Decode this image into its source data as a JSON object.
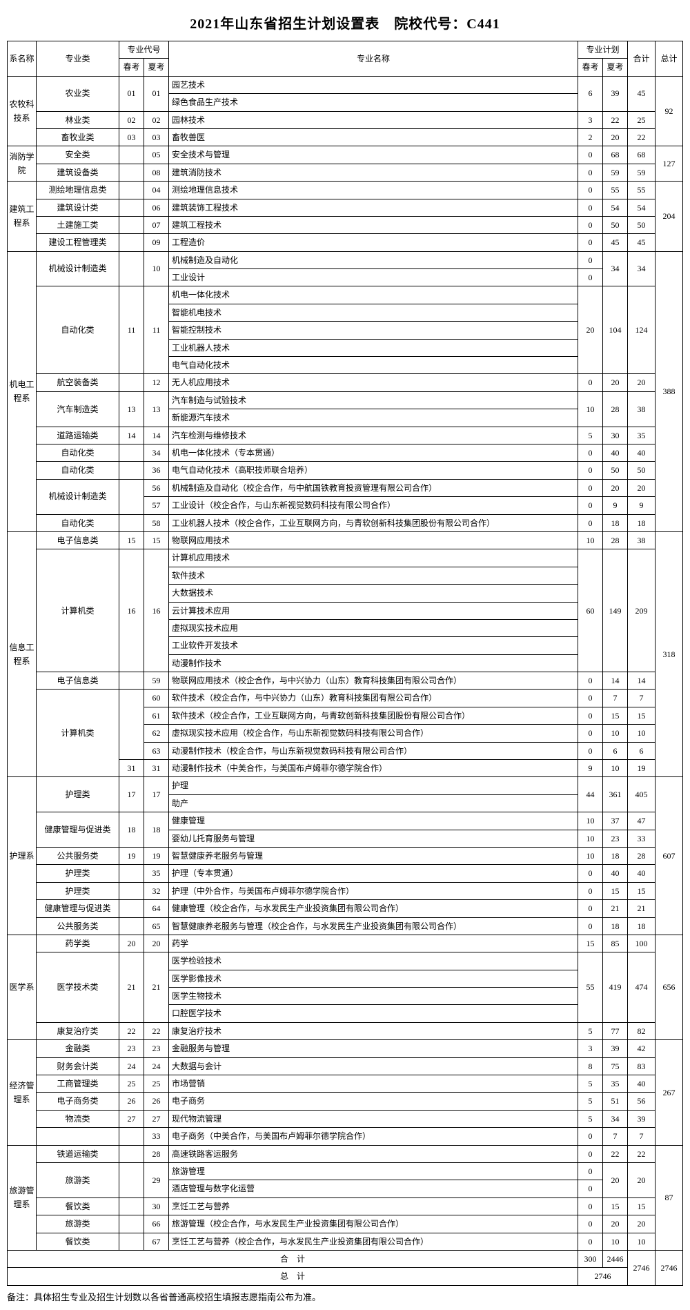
{
  "title": "2021年山东省招生计划设置表　院校代号：C441",
  "headers": {
    "dept": "系名称",
    "category": "专业类",
    "codeGroup": "专业代号",
    "codeSpring": "春考",
    "codeSummer": "夏考",
    "majorName": "专业名称",
    "planGroup": "专业计划",
    "planSpring": "春考",
    "planSummer": "夏考",
    "sum": "合计",
    "total": "总计"
  },
  "footer": {
    "sumLabel": "合　计",
    "totalLabel": "总　计",
    "sumSpring": "300",
    "sumSummer": "2446",
    "grandSum": "2746",
    "grandTotal": "2746",
    "totalMerged": "2746"
  },
  "note": "备注：具体招生专业及招生计划数以各省普通高校招生填报志愿指南公布为准。",
  "cells": {
    "d1": "农牧科技系",
    "d2": "消防学院",
    "d3": "建筑工程系",
    "d4": "机电工程系",
    "d5": "信息工程系",
    "d6": "护理系",
    "d7": "医学系",
    "d8": "经济管理系",
    "d9": "旅游管理系",
    "c1": "农业类",
    "c2": "林业类",
    "c3": "畜牧业类",
    "c4": "安全类",
    "c5": "建筑设备类",
    "c6": "测绘地理信息类",
    "c7": "建筑设计类",
    "c8": "土建施工类",
    "c9": "建设工程管理类",
    "c10": "机械设计制造类",
    "c11": "自动化类",
    "c12": "航空装备类",
    "c13": "汽车制造类",
    "c14": "道路运输类",
    "c15": "自动化类",
    "c16": "自动化类",
    "c17": "机械设计制造类",
    "c18": "自动化类",
    "c19": "电子信息类",
    "c20": "计算机类",
    "c21": "电子信息类",
    "c22": "计算机类",
    "c23": "护理类",
    "c24": "健康管理与促进类",
    "c25": "公共服务类",
    "c26": "护理类",
    "c27": "护理类",
    "c28": "健康管理与促进类",
    "c29": "公共服务类",
    "c30": "药学类",
    "c31": "医学技术类",
    "c32": "康复治疗类",
    "c33": "金融类",
    "c34": "财务会计类",
    "c35": "工商管理类",
    "c36": "电子商务类",
    "c37": "物流类",
    "c38": "铁道运输类",
    "c39": "旅游类",
    "c40": "餐饮类",
    "c41": "旅游类",
    "c42": "餐饮类",
    "m1": "园艺技术",
    "m2": "绿色食品生产技术",
    "m3": "园林技术",
    "m4": "畜牧兽医",
    "m5": "安全技术与管理",
    "m6": "建筑消防技术",
    "m7": "测绘地理信息技术",
    "m8": "建筑装饰工程技术",
    "m9": "建筑工程技术",
    "m10": "工程造价",
    "m11": "机械制造及自动化",
    "m12": "工业设计",
    "m13": "机电一体化技术",
    "m14": "智能机电技术",
    "m15": "智能控制技术",
    "m16": "工业机器人技术",
    "m17": "电气自动化技术",
    "m18": "无人机应用技术",
    "m19": "汽车制造与试验技术",
    "m20": "新能源汽车技术",
    "m21": "汽车检测与维修技术",
    "m22": "机电一体化技术（专本贯通）",
    "m23": "电气自动化技术（高职技师联合培养）",
    "m24": "机械制造及自动化（校企合作，与中航国铁教育投资管理有限公司合作）",
    "m25": "工业设计（校企合作，与山东新视觉数码科技有限公司合作）",
    "m26": "工业机器人技术（校企合作，工业互联网方向，与青软创新科技集团股份有限公司合作）",
    "m27": "物联网应用技术",
    "m28": "计算机应用技术",
    "m29": "软件技术",
    "m30": "大数据技术",
    "m31": "云计算技术应用",
    "m32": "虚拟现实技术应用",
    "m33": "工业软件开发技术",
    "m34": "动漫制作技术",
    "m35": "物联网应用技术（校企合作，与中兴协力（山东）教育科技集团有限公司合作）",
    "m36": "软件技术（校企合作，与中兴协力（山东）教育科技集团有限公司合作）",
    "m37": "软件技术（校企合作，工业互联网方向，与青软创新科技集团股份有限公司合作）",
    "m38": "虚拟现实技术应用（校企合作，与山东新视觉数码科技有限公司合作）",
    "m39": "动漫制作技术（校企合作，与山东新视觉数码科技有限公司合作）",
    "m40": "动漫制作技术（中美合作，与美国布卢姆菲尔德学院合作）",
    "m41": "护理",
    "m42": "助产",
    "m43": "健康管理",
    "m44": "婴幼儿托育服务与管理",
    "m45": "智慧健康养老服务与管理",
    "m46": "护理（专本贯通）",
    "m47": "护理（中外合作，与美国布卢姆菲尔德学院合作）",
    "m48": "健康管理（校企合作，与水发民生产业投资集团有限公司合作）",
    "m49": "智慧健康养老服务与管理（校企合作，与水发民生产业投资集团有限公司合作）",
    "m50": "药学",
    "m51": "医学检验技术",
    "m52": "医学影像技术",
    "m53": "医学生物技术",
    "m54": "口腔医学技术",
    "m55": "康复治疗技术",
    "m56": "金融服务与管理",
    "m57": "大数据与会计",
    "m58": "市场营销",
    "m59": "电子商务",
    "m60": "现代物流管理",
    "m61": "电子商务（中美合作，与美国布卢姆菲尔德学院合作）",
    "m62": "高速铁路客运服务",
    "m63": "旅游管理",
    "m64": "酒店管理与数字化运营",
    "m65": "烹饪工艺与营养",
    "m66": "旅游管理（校企合作，与水发民生产业投资集团有限公司合作）",
    "m67": "烹饪工艺与营养（校企合作，与水发民生产业投资集团有限公司合作）",
    "sc1a": "01",
    "sc1b": "01",
    "sc2a": "02",
    "sc2b": "02",
    "sc3a": "03",
    "sc3b": "03",
    "sc4b": "05",
    "sc5b": "08",
    "sc6b": "04",
    "sc7b": "06",
    "sc8b": "07",
    "sc9b": "09",
    "sc10b": "10",
    "sc11a": "11",
    "sc11b": "11",
    "sc12b": "12",
    "sc13a": "13",
    "sc13b": "13",
    "sc14a": "14",
    "sc14b": "14",
    "sc15b": "34",
    "sc16b": "36",
    "sc17b": "56",
    "sc18b": "57",
    "sc19b": "58",
    "sc20a": "15",
    "sc20b": "15",
    "sc21a": "16",
    "sc21b": "16",
    "sc22b": "59",
    "sc23b": "60",
    "sc24b": "61",
    "sc25b": "62",
    "sc26b": "63",
    "sc27a": "31",
    "sc27b": "31",
    "sc28a": "17",
    "sc28b": "17",
    "sc29a": "18",
    "sc29b": "18",
    "sc30a": "19",
    "sc30b": "19",
    "sc31b": "35",
    "sc32b": "32",
    "sc33b": "64",
    "sc34b": "65",
    "sc35a": "20",
    "sc35b": "20",
    "sc36a": "21",
    "sc36b": "21",
    "sc37a": "22",
    "sc37b": "22",
    "sc38a": "23",
    "sc38b": "23",
    "sc39a": "24",
    "sc39b": "24",
    "sc40a": "25",
    "sc40b": "25",
    "sc41a": "26",
    "sc41b": "26",
    "sc42a": "27",
    "sc42b": "27",
    "sc43b": "33",
    "sc44b": "28",
    "sc45b": "29",
    "sc46b": "30",
    "sc47b": "66",
    "sc48b": "67",
    "p1a": "6",
    "p1b": "39",
    "s1": "45",
    "p2a": "3",
    "p2b": "22",
    "s2": "25",
    "p3a": "2",
    "p3b": "20",
    "s3": "22",
    "t1": "92",
    "p4a": "0",
    "p4b": "68",
    "s4": "68",
    "p5a": "0",
    "p5b": "59",
    "s5": "59",
    "t2": "127",
    "p6a": "0",
    "p6b": "55",
    "s6": "55",
    "p7a": "0",
    "p7b": "54",
    "s7": "54",
    "p8a": "0",
    "p8b": "50",
    "s8": "50",
    "p9a": "0",
    "p9b": "45",
    "s9": "45",
    "t3": "204",
    "p10a": "0",
    "p10b": "34",
    "s10": "34",
    "p10a2": "0",
    "p11a": "20",
    "p11b": "104",
    "s11": "124",
    "p12a": "0",
    "p12b": "20",
    "s12": "20",
    "p13a": "10",
    "p13b": "28",
    "s13": "38",
    "p14a": "5",
    "p14b": "30",
    "s14": "35",
    "p15a": "0",
    "p15b": "40",
    "s15": "40",
    "p16a": "0",
    "p16b": "50",
    "s16": "50",
    "p17a": "0",
    "p17b": "20",
    "s17": "20",
    "p18a": "0",
    "p18b": "9",
    "s18": "9",
    "p19a": "0",
    "p19b": "18",
    "s19": "18",
    "t4": "388",
    "p20a": "10",
    "p20b": "28",
    "s20": "38",
    "p21a": "60",
    "p21b": "149",
    "s21": "209",
    "p22a": "0",
    "p22b": "14",
    "s22": "14",
    "p23a": "0",
    "p23b": "7",
    "s23": "7",
    "p24a": "0",
    "p24b": "15",
    "s24": "15",
    "p25a": "0",
    "p25b": "10",
    "s25": "10",
    "p26a": "0",
    "p26b": "6",
    "s26": "6",
    "p27a": "9",
    "p27b": "10",
    "s27": "19",
    "t5": "318",
    "p28a": "44",
    "p28b": "361",
    "s28": "405",
    "p29a": "10",
    "p29b": "37",
    "s29": "47",
    "p29a2": "10",
    "p29b2": "23",
    "s29b": "33",
    "p30a": "10",
    "p30b": "18",
    "s30": "28",
    "p31a": "0",
    "p31b": "40",
    "s31": "40",
    "p32a": "0",
    "p32b": "15",
    "s32": "15",
    "p33a": "0",
    "p33b": "21",
    "s33": "21",
    "p34a": "0",
    "p34b": "18",
    "s34": "18",
    "t6": "607",
    "p35a": "15",
    "p35b": "85",
    "s35": "100",
    "p36a": "55",
    "p36b": "419",
    "s36": "474",
    "p37a": "5",
    "p37b": "77",
    "s37": "82",
    "t7": "656",
    "p38a": "3",
    "p38b": "39",
    "s38": "42",
    "p39a": "8",
    "p39b": "75",
    "s39": "83",
    "p40a": "5",
    "p40b": "35",
    "s40": "40",
    "p41a": "5",
    "p41b": "51",
    "s41": "56",
    "p42a": "5",
    "p42b": "34",
    "s42": "39",
    "p43a": "0",
    "p43b": "7",
    "s43": "7",
    "t8": "267",
    "p44a": "0",
    "p44b": "22",
    "s44": "22",
    "p45a": "0",
    "p45b": "20",
    "s45": "20",
    "p45a2": "0",
    "p46a": "0",
    "p46b": "15",
    "s46": "15",
    "p47a": "0",
    "p47b": "20",
    "s47": "20",
    "p48a": "0",
    "p48b": "10",
    "s48": "10",
    "t9": "87"
  }
}
